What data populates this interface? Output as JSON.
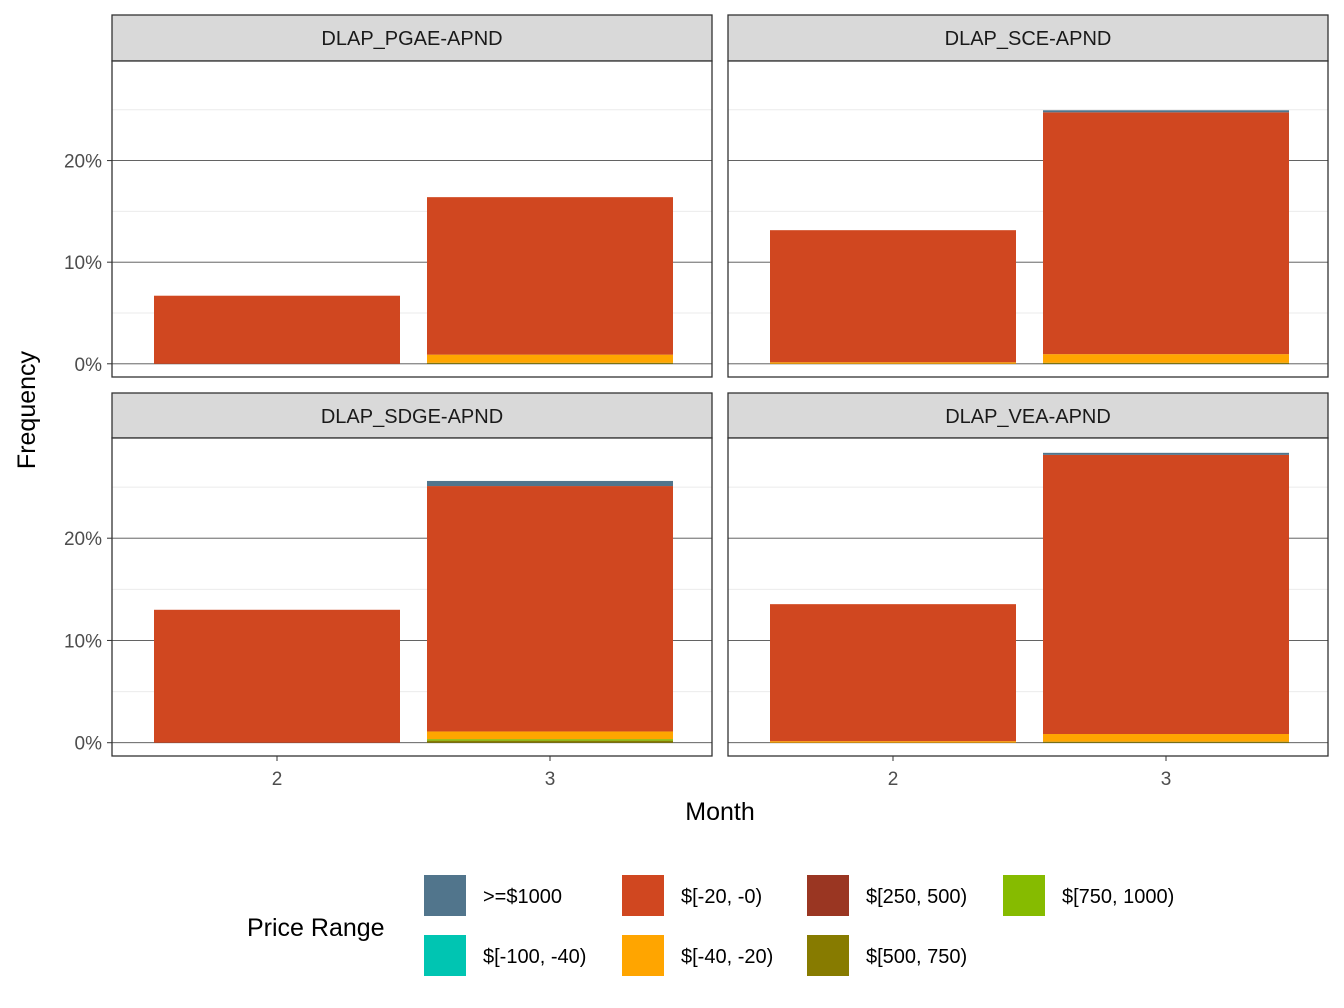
{
  "chart_data": {
    "type": "bar",
    "stacked": true,
    "ylabel": "Frequency",
    "xlabel": "Month",
    "categories": [
      "2",
      "3"
    ],
    "y_ticks": [
      "0%",
      "10%",
      "20%"
    ],
    "ylim": [
      -1.3,
      29.8
    ],
    "grid": true,
    "legend": {
      "title": "Price Range",
      "position": "bottom",
      "entries": [
        {
          "label": ">=$1000",
          "color": "#51758C"
        },
        {
          "label": "$[-100, -40)",
          "color": "#00C5B2"
        },
        {
          "label": "$[-20, -0)",
          "color": "#D04720"
        },
        {
          "label": "$[-40, -20)",
          "color": "#FFA500"
        },
        {
          "label": "$[250, 500)",
          "color": "#9A3622"
        },
        {
          "label": "$[500, 750)",
          "color": "#877B00"
        },
        {
          "label": "$[750, 1000)",
          "color": "#86BB00"
        }
      ]
    },
    "panels": [
      {
        "title": "DLAP_PGAE-APND",
        "stacks": [
          {
            "month": "2",
            "segments": [
              {
                "range": "$[-20, -0)",
                "value": 6.7
              }
            ]
          },
          {
            "month": "3",
            "segments": [
              {
                "range": "$[500, 750)",
                "value": 0.1
              },
              {
                "range": "$[-40, -20)",
                "value": 0.8
              },
              {
                "range": "$[-20, -0)",
                "value": 15.5
              }
            ]
          }
        ]
      },
      {
        "title": "DLAP_SCE-APND",
        "stacks": [
          {
            "month": "2",
            "segments": [
              {
                "range": "$[-40, -20)",
                "value": 0.15
              },
              {
                "range": "$[-20, -0)",
                "value": 13.0
              }
            ]
          },
          {
            "month": "3",
            "segments": [
              {
                "range": "$[500, 750)",
                "value": 0.1
              },
              {
                "range": "$[-40, -20)",
                "value": 0.85
              },
              {
                "range": "$[-20, -0)",
                "value": 23.8
              },
              {
                "range": ">=$1000",
                "value": 0.2
              }
            ]
          }
        ]
      },
      {
        "title": "DLAP_SDGE-APND",
        "stacks": [
          {
            "month": "2",
            "segments": [
              {
                "range": "$[-20, -0)",
                "value": 13.0
              }
            ]
          },
          {
            "month": "3",
            "segments": [
              {
                "range": "$[500, 750)",
                "value": 0.2
              },
              {
                "range": "$[750, 1000)",
                "value": 0.15
              },
              {
                "range": "$[-40, -20)",
                "value": 0.75
              },
              {
                "range": "$[-20, -0)",
                "value": 24.0
              },
              {
                "range": ">=$1000",
                "value": 0.5
              }
            ]
          }
        ]
      },
      {
        "title": "DLAP_VEA-APND",
        "stacks": [
          {
            "month": "2",
            "segments": [
              {
                "range": "$[-40, -20)",
                "value": 0.15
              },
              {
                "range": "$[-20, -0)",
                "value": 13.4
              }
            ]
          },
          {
            "month": "3",
            "segments": [
              {
                "range": "$[500, 750)",
                "value": 0.1
              },
              {
                "range": "$[-40, -20)",
                "value": 0.75
              },
              {
                "range": "$[-20, -0)",
                "value": 27.3
              },
              {
                "range": ">=$1000",
                "value": 0.2
              }
            ]
          }
        ]
      }
    ]
  }
}
